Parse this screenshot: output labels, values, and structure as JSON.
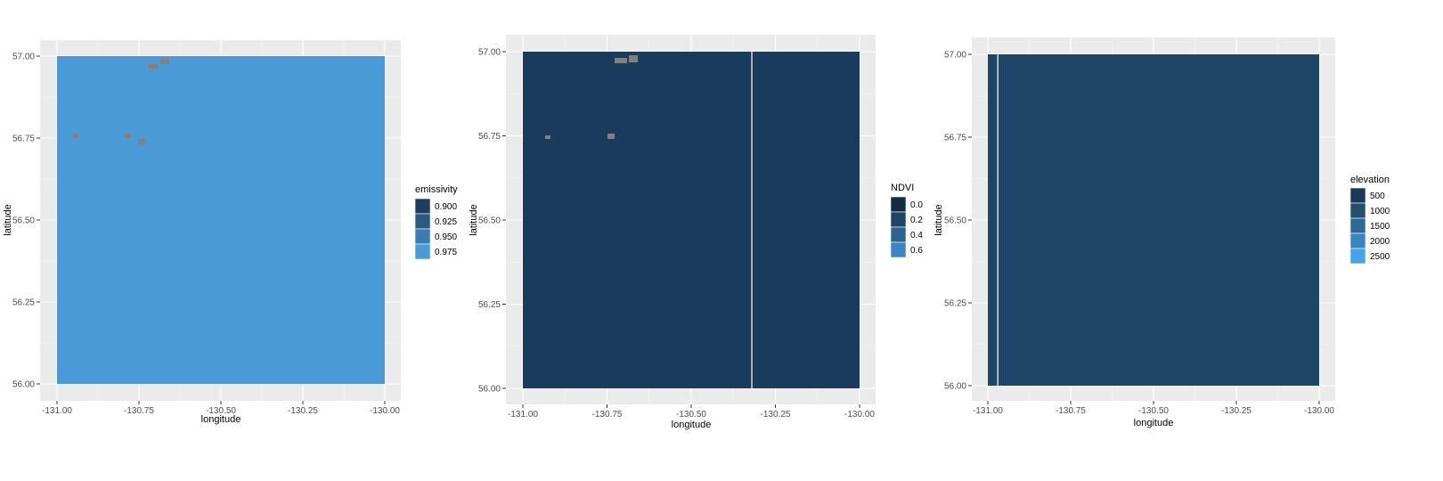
{
  "colors": {
    "panel_bg": "#ebebeb",
    "grid_major": "#ffffff",
    "grid_minor": "#f5f5f5",
    "tick": "#333333",
    "tick_text": "#4d4d4d",
    "na": "#808080",
    "ramp_low": "#132b43",
    "ramp_high": "#56b1f7"
  },
  "chart_data": [
    {
      "type": "heatmap",
      "xlabel": "longitude",
      "ylabel": "latitude",
      "xlim": [
        -131.0,
        -130.0
      ],
      "ylim": [
        56.0,
        57.0
      ],
      "x_ticks": [
        -131.0,
        -130.75,
        -130.5,
        -130.25,
        -130.0
      ],
      "x_tick_labels": [
        "-131.00",
        "-130.75",
        "-130.50",
        "-130.25",
        "-130.00"
      ],
      "y_ticks": [
        56.0,
        56.25,
        56.5,
        56.75,
        57.0
      ],
      "y_tick_labels": [
        "56.00",
        "56.25",
        "56.50",
        "56.75",
        "57.00"
      ],
      "grid": true,
      "legend": {
        "title": "emissivity",
        "placement": "right",
        "breaks": [
          0.9,
          0.925,
          0.95,
          0.975
        ],
        "labels": [
          "0.900",
          "0.925",
          "0.950",
          "0.975"
        ],
        "colors": [
          "#1e3e5c",
          "#285a82",
          "#3a7bb4",
          "#4a9ad8"
        ]
      },
      "fill_range": [
        0.88,
        0.99
      ]
    },
    {
      "type": "heatmap",
      "xlabel": "longitude",
      "ylabel": "latitude",
      "xlim": [
        -131.0,
        -130.0
      ],
      "ylim": [
        56.0,
        57.0
      ],
      "x_ticks": [
        -131.0,
        -130.75,
        -130.5,
        -130.25,
        -130.0
      ],
      "x_tick_labels": [
        "-131.00",
        "-130.75",
        "-130.50",
        "-130.25",
        "-130.00"
      ],
      "y_ticks": [
        56.0,
        56.25,
        56.5,
        56.75,
        57.0
      ],
      "y_tick_labels": [
        "56.00",
        "56.25",
        "56.50",
        "56.75",
        "57.00"
      ],
      "grid": true,
      "legend": {
        "title": "NDVI",
        "placement": "right",
        "breaks": [
          0.0,
          0.2,
          0.4,
          0.6
        ],
        "labels": [
          "0.0",
          "0.2",
          "0.4",
          "0.6"
        ],
        "colors": [
          "#132b43",
          "#1f4566",
          "#2d6291",
          "#3e84c2"
        ]
      },
      "fill_range": [
        -0.05,
        0.75
      ]
    },
    {
      "type": "heatmap",
      "xlabel": "longitude",
      "ylabel": "latitude",
      "xlim": [
        -131.0,
        -130.0
      ],
      "ylim": [
        56.0,
        57.0
      ],
      "x_ticks": [
        -131.0,
        -130.75,
        -130.5,
        -130.25,
        -130.0
      ],
      "x_tick_labels": [
        "-131.00",
        "-130.75",
        "-130.50",
        "-130.25",
        "-130.00"
      ],
      "y_ticks": [
        56.0,
        56.25,
        56.5,
        56.75,
        57.0
      ],
      "y_tick_labels": [
        "56.00",
        "56.25",
        "56.50",
        "56.75",
        "57.00"
      ],
      "grid": true,
      "legend": {
        "title": "elevation",
        "placement": "right",
        "breaks": [
          500,
          1000,
          1500,
          2000,
          2500
        ],
        "labels": [
          "500",
          "1000",
          "1500",
          "2000",
          "2500"
        ],
        "colors": [
          "#1b3a58",
          "#235072",
          "#2d6896",
          "#3a84bf",
          "#4aa1e6"
        ]
      },
      "fill_range": [
        0,
        2700
      ]
    }
  ]
}
